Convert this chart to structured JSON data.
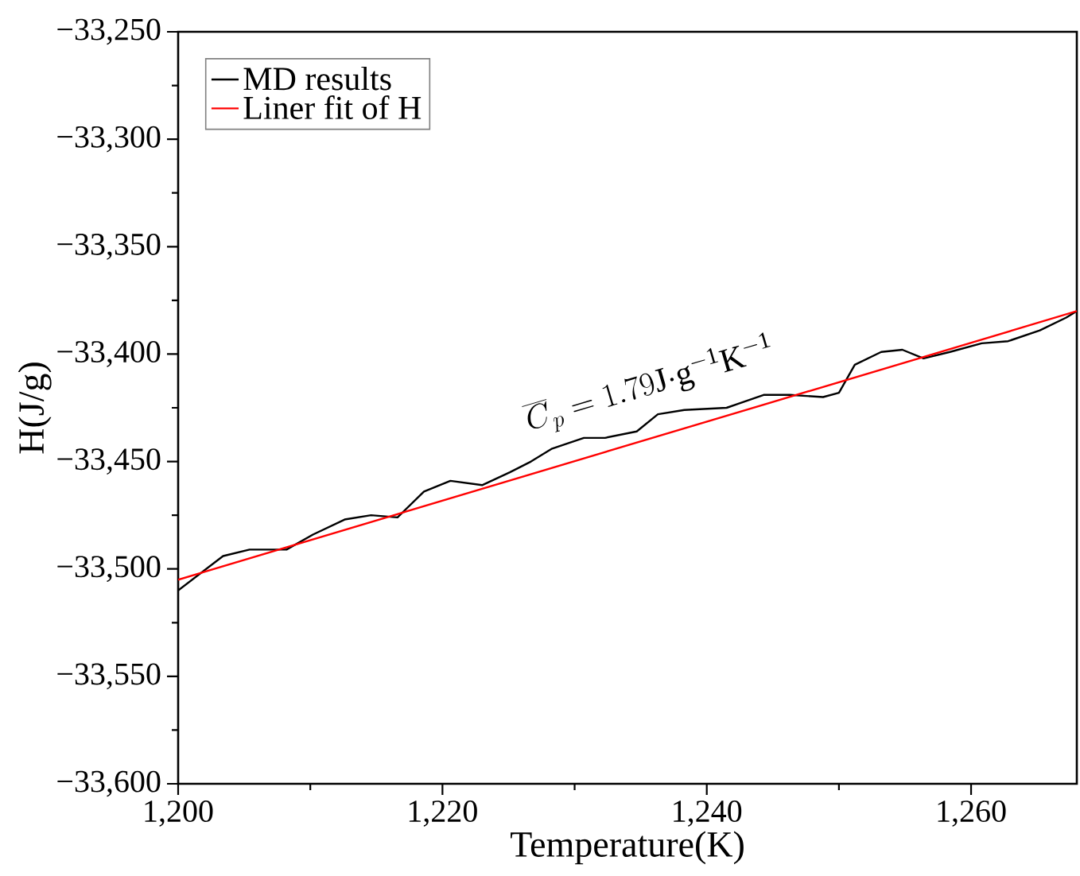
{
  "chart_data": {
    "type": "line",
    "xlabel": "Temperature(K)",
    "ylabel": "H(J/g)",
    "xlim": [
      1200,
      1268
    ],
    "ylim": [
      -33600,
      -33250
    ],
    "xticks": [
      {
        "value": 1200,
        "label": "1,200"
      },
      {
        "value": 1220,
        "label": "1,220"
      },
      {
        "value": 1240,
        "label": "1,240"
      },
      {
        "value": 1260,
        "label": "1,260"
      }
    ],
    "yticks": [
      {
        "value": -33600,
        "label": "−33,600"
      },
      {
        "value": -33550,
        "label": "−33,550"
      },
      {
        "value": -33500,
        "label": "−33,500"
      },
      {
        "value": -33450,
        "label": "−33,450"
      },
      {
        "value": -33400,
        "label": "−33,400"
      },
      {
        "value": -33350,
        "label": "−33,350"
      },
      {
        "value": -33300,
        "label": "−33,300"
      },
      {
        "value": -33250,
        "label": "−33,250"
      }
    ],
    "legend": "top left",
    "annotations": [
      "\\overline{C}_{p}=1.79\\mathrm{J{\\cdot}g^{-1}K^{-1}}"
    ],
    "series": [
      {
        "name": "MD results",
        "color": "#000000",
        "x": [
          1200,
          1203.4,
          1205.4,
          1208.2,
          1210.2,
          1212.6,
          1214.6,
          1216.6,
          1218.6,
          1220.6,
          1223,
          1225.1,
          1226.7,
          1228.3,
          1230.7,
          1232.3,
          1234.7,
          1236.3,
          1238.3,
          1241.5,
          1244.3,
          1246.3,
          1248.8,
          1250,
          1251.2,
          1253.2,
          1254.8,
          1256.4,
          1258.4,
          1260.8,
          1262.8,
          1265.2,
          1267.2,
          1268
        ],
        "values": [
          -33510,
          -33494,
          -33491,
          -33491,
          -33484,
          -33477,
          -33475,
          -33476,
          -33464,
          -33459,
          -33461,
          -33455,
          -33450,
          -33444,
          -33439,
          -33439,
          -33436,
          -33428,
          -33426,
          -33425,
          -33419,
          -33419,
          -33420,
          -33418,
          -33405,
          -33399,
          -33398,
          -33402,
          -33399,
          -33395,
          -33394,
          -33389,
          -33383,
          -33380
        ]
      },
      {
        "name": "Liner fit of H",
        "color": "#ff0000",
        "x": [
          1200,
          1268
        ],
        "values": [
          -33505,
          -33380
        ]
      }
    ]
  }
}
